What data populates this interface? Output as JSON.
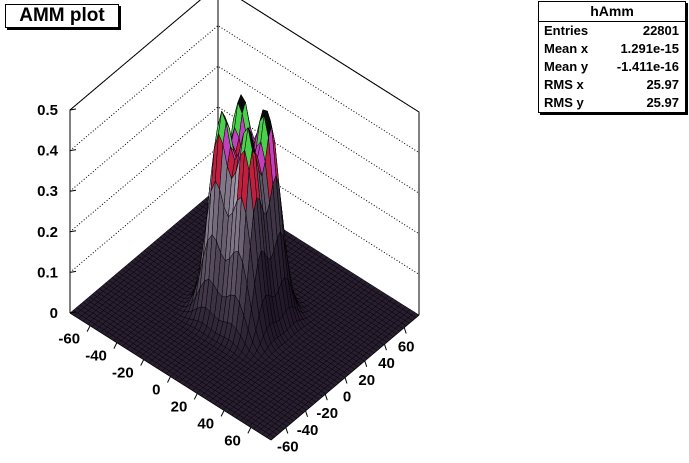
{
  "title": "AMM plot",
  "stats": {
    "name": "hAmm",
    "rows": [
      {
        "label": "Entries",
        "value": "22801"
      },
      {
        "label": "Mean x",
        "value": "1.291e-15"
      },
      {
        "label": "Mean y",
        "value": "-1.411e-16"
      },
      {
        "label": "RMS x",
        "value": "25.97"
      },
      {
        "label": "RMS y",
        "value": "25.97"
      }
    ]
  },
  "chart_data": {
    "type": "surface",
    "title": "AMM plot",
    "histogram": "hAmm",
    "xlim": [
      -75,
      75
    ],
    "ylim": [
      -75,
      75
    ],
    "zlim": [
      0,
      0.5
    ],
    "x_ticks": [
      "-60",
      "-40",
      "-20",
      "0",
      "20",
      "40",
      "60"
    ],
    "y_ticks": [
      "-60",
      "-40",
      "-20",
      "0",
      "20",
      "40",
      "60"
    ],
    "z_ticks": [
      "0",
      "0.1",
      "0.2",
      "0.3",
      "0.4",
      "0.5"
    ],
    "grid": true,
    "peaks": [
      {
        "x": -10,
        "y": 10,
        "z": 0.48
      },
      {
        "x": 10,
        "y": 10,
        "z": 0.49
      },
      {
        "x": -10,
        "y": -10,
        "z": 0.47
      },
      {
        "x": 10,
        "y": -10,
        "z": 0.47
      }
    ],
    "colors": {
      "background": "#ffffff",
      "mesh": "#000000"
    }
  }
}
